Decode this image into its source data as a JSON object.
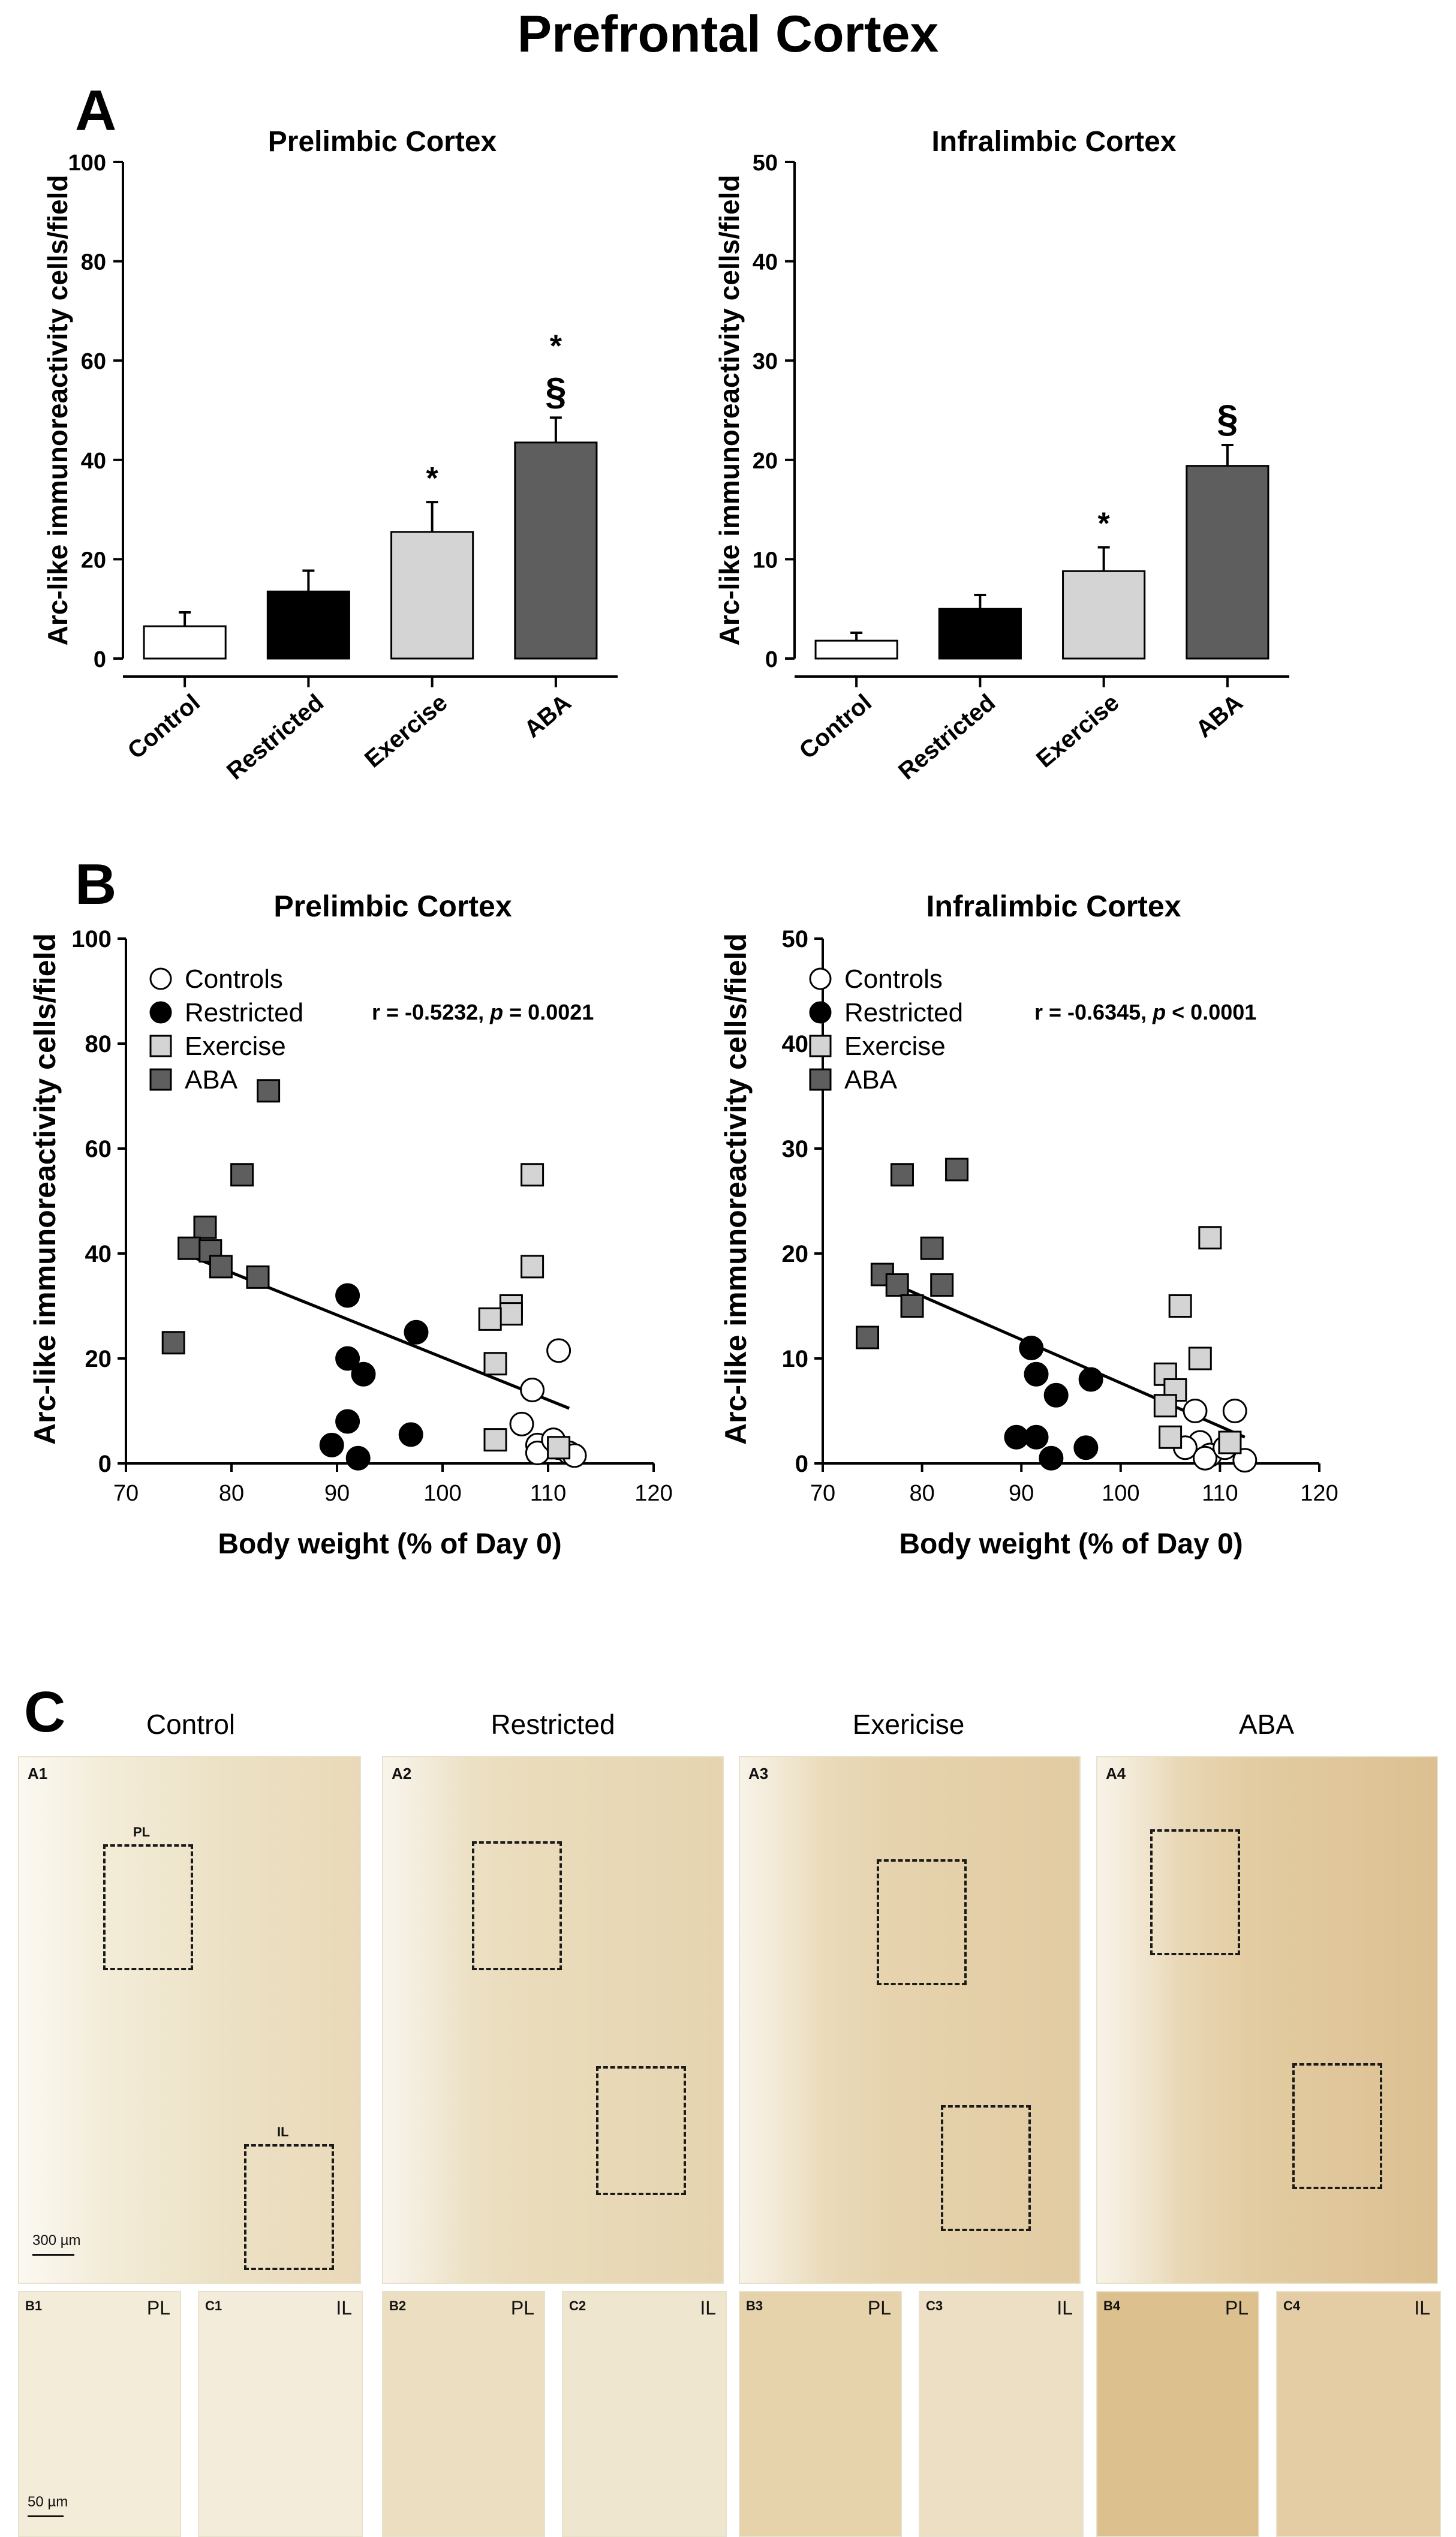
{
  "figure_title": "Prefrontal Cortex",
  "panels": {
    "A": "A",
    "B": "B",
    "C": "C"
  },
  "chart_data": [
    {
      "id": "A-prelimbic",
      "type": "bar",
      "title": "Prelimbic Cortex",
      "ylabel": "Arc-like immunoreactivity cells/field",
      "xlabel": "",
      "categories": [
        "Control",
        "Restricted",
        "Exercise",
        "ABA"
      ],
      "values": [
        6.5,
        13.5,
        25.5,
        43.5
      ],
      "errors": [
        2.8,
        4.2,
        6.0,
        5.0
      ],
      "colors": [
        "#ffffff",
        "#000000",
        "#d4d4d4",
        "#5e5e5e"
      ],
      "annotations": [
        "",
        "",
        "*",
        "*\n§"
      ],
      "ylim": [
        0,
        100
      ],
      "yticks": [
        0,
        20,
        40,
        60,
        80,
        100
      ],
      "grid": false
    },
    {
      "id": "A-infralimbic",
      "type": "bar",
      "title": "Infralimbic Cortex",
      "ylabel": "Arc-like immunoreactivity cells/field",
      "xlabel": "",
      "categories": [
        "Control",
        "Restricted",
        "Exercise",
        "ABA"
      ],
      "values": [
        1.8,
        5.0,
        8.8,
        19.4
      ],
      "errors": [
        0.8,
        1.4,
        2.4,
        2.1
      ],
      "colors": [
        "#ffffff",
        "#000000",
        "#d4d4d4",
        "#5e5e5e"
      ],
      "annotations": [
        "",
        "",
        "*",
        "§"
      ],
      "ylim": [
        0,
        50
      ],
      "yticks": [
        0,
        10,
        20,
        30,
        40,
        50
      ],
      "grid": false
    },
    {
      "id": "B-prelimbic",
      "type": "scatter",
      "title": "Prelimbic Cortex",
      "ylabel": "Arc-like immunoreactivity cells/field",
      "xlabel": "Body weight (% of Day 0)",
      "xlim": [
        70,
        120
      ],
      "ylim": [
        0,
        100
      ],
      "xticks": [
        70,
        80,
        90,
        100,
        110,
        120
      ],
      "yticks": [
        0,
        20,
        40,
        60,
        80,
        100
      ],
      "stats": {
        "r_label": "r = -0.5232, ",
        "p_label": "p",
        "p_value": " = 0.0021"
      },
      "regression": {
        "x": [
          75.5,
          112.0
        ],
        "y": [
          40.0,
          10.5
        ]
      },
      "legend_position": "top-left",
      "series": [
        {
          "name": "Controls",
          "marker": "circle",
          "fill": "#ffffff",
          "points": [
            [
              111.0,
              21.5
            ],
            [
              108.5,
              14.0
            ],
            [
              107.5,
              7.5
            ],
            [
              109.0,
              3.5
            ],
            [
              109.0,
              2.0
            ],
            [
              111.0,
              3.0
            ],
            [
              110.5,
              4.5
            ],
            [
              112.0,
              2.0
            ],
            [
              112.5,
              1.5
            ]
          ]
        },
        {
          "name": "Restricted",
          "marker": "circle",
          "fill": "#000000",
          "points": [
            [
              91.0,
              32.0
            ],
            [
              91.0,
              20.0
            ],
            [
              92.5,
              17.0
            ],
            [
              97.5,
              25.0
            ],
            [
              91.0,
              8.0
            ],
            [
              89.5,
              3.5
            ],
            [
              92.0,
              1.0
            ],
            [
              97.0,
              5.5
            ]
          ]
        },
        {
          "name": "Exercise",
          "marker": "square",
          "fill": "#d4d4d4",
          "points": [
            [
              108.5,
              55.0
            ],
            [
              108.5,
              37.5
            ],
            [
              106.5,
              30.0
            ],
            [
              106.5,
              28.5
            ],
            [
              104.5,
              27.5
            ],
            [
              105.0,
              19.0
            ],
            [
              105.0,
              4.5
            ],
            [
              111.0,
              3.0
            ]
          ]
        },
        {
          "name": "ABA",
          "marker": "square",
          "fill": "#5e5e5e",
          "points": [
            [
              83.5,
              71.0
            ],
            [
              81.0,
              55.0
            ],
            [
              77.5,
              45.0
            ],
            [
              76.0,
              41.0
            ],
            [
              78.0,
              40.5
            ],
            [
              79.0,
              37.5
            ],
            [
              82.5,
              35.5
            ],
            [
              74.5,
              23.0
            ]
          ]
        }
      ],
      "grid": false
    },
    {
      "id": "B-infralimbic",
      "type": "scatter",
      "title": "Infralimbic Cortex",
      "ylabel": "Arc-like immunoreactivity cells/field",
      "xlabel": "Body weight (% of Day 0)",
      "xlim": [
        70,
        120
      ],
      "ylim": [
        0,
        50
      ],
      "xticks": [
        70,
        80,
        90,
        100,
        110,
        120
      ],
      "yticks": [
        0,
        10,
        20,
        30,
        40,
        50
      ],
      "stats": {
        "r_label": "r = -0.6345, ",
        "p_label": "p",
        "p_value": " < 0.0001"
      },
      "regression": {
        "x": [
          75.0,
          112.5
        ],
        "y": [
          18.0,
          2.5
        ]
      },
      "legend_position": "top-left",
      "series": [
        {
          "name": "Controls",
          "marker": "circle",
          "fill": "#ffffff",
          "points": [
            [
              107.5,
              5.0
            ],
            [
              111.5,
              5.0
            ],
            [
              108.0,
              2.0
            ],
            [
              106.5,
              1.5
            ],
            [
              109.0,
              0.8
            ],
            [
              108.5,
              0.5
            ],
            [
              110.5,
              1.5
            ],
            [
              112.5,
              0.3
            ]
          ]
        },
        {
          "name": "Restricted",
          "marker": "circle",
          "fill": "#000000",
          "points": [
            [
              91.0,
              11.0
            ],
            [
              91.5,
              8.5
            ],
            [
              97.0,
              8.0
            ],
            [
              93.5,
              6.5
            ],
            [
              89.5,
              2.5
            ],
            [
              91.5,
              2.5
            ],
            [
              93.0,
              0.5
            ],
            [
              96.5,
              1.5
            ]
          ]
        },
        {
          "name": "Exercise",
          "marker": "square",
          "fill": "#d4d4d4",
          "points": [
            [
              109.0,
              21.5
            ],
            [
              106.0,
              15.0
            ],
            [
              108.0,
              10.0
            ],
            [
              104.5,
              8.5
            ],
            [
              105.5,
              7.0
            ],
            [
              104.5,
              5.5
            ],
            [
              105.0,
              2.5
            ],
            [
              111.0,
              2.0
            ]
          ]
        },
        {
          "name": "ABA",
          "marker": "square",
          "fill": "#5e5e5e",
          "points": [
            [
              78.0,
              27.5
            ],
            [
              83.5,
              28.0
            ],
            [
              81.0,
              20.5
            ],
            [
              76.0,
              18.0
            ],
            [
              77.5,
              17.0
            ],
            [
              82.0,
              17.0
            ],
            [
              79.0,
              15.0
            ],
            [
              74.5,
              12.0
            ]
          ]
        }
      ],
      "grid": false
    }
  ],
  "micrographs": {
    "columns": [
      "Control",
      "Restricted",
      "Exericise",
      "ABA"
    ],
    "overview_tags": [
      "A1",
      "A2",
      "A3",
      "A4"
    ],
    "region_labels": {
      "pl": "PL",
      "il": "IL"
    },
    "scale_overview": "300 µm",
    "scale_detail": "50 µm",
    "details": [
      {
        "tag": "B1",
        "region": "PL"
      },
      {
        "tag": "C1",
        "region": "IL"
      },
      {
        "tag": "B2",
        "region": "PL"
      },
      {
        "tag": "C2",
        "region": "IL"
      },
      {
        "tag": "B3",
        "region": "PL"
      },
      {
        "tag": "C3",
        "region": "IL"
      },
      {
        "tag": "B4",
        "region": "PL"
      },
      {
        "tag": "C4",
        "region": "IL"
      }
    ],
    "stain_color": "#eee4c8"
  }
}
